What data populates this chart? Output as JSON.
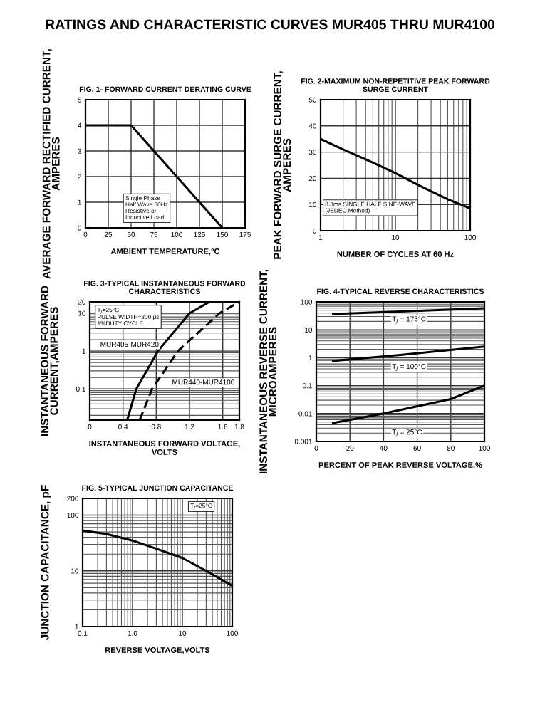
{
  "chart_data": [
    {
      "type": "line",
      "title": "FIG. 1- FORWARD CURRENT DERATING CURVE",
      "xlabel": "AMBIENT TEMPERATURE,°C",
      "ylabel": "AVERAGE FORWARD RECTIFIED CURRENT,\nAMPERES",
      "annotations": [
        "RATINGS AND CHARACTERISTIC CURVES MUR405 THRU MUR4100",
        "Single Phase\nHalf Wave 60Hz\nResistive or\nInductive Load"
      ],
      "series": [
        {
          "color": "#000000",
          "x": [
            0,
            50,
            150
          ],
          "values": [
            4,
            4,
            0
          ],
          "line_style": "solid"
        }
      ],
      "xlim": [
        0,
        175
      ],
      "ylim": [
        0,
        5
      ],
      "xticks": [
        0,
        25,
        50,
        75,
        100,
        125,
        150,
        175
      ],
      "yticks": [
        0,
        1,
        2,
        3,
        4,
        5
      ],
      "grid": true,
      "marker": "none"
    },
    {
      "type": "line",
      "title": "FIG. 2-MAXIMUM NON-REPETITIVE PEAK FORWARD\nSURGE CURRENT",
      "xlabel": "NUMBER OF CYCLES AT 60 Hz",
      "ylabel": "PEAK FORWARD SURGE CURRENT,\nAMPERES",
      "annotations": [
        "8.3ms SINGLE HALF SINE-WAVE\n(JEDEC Method)"
      ],
      "series": [
        {
          "color": "#000000",
          "x": [
            1,
            2,
            5,
            10,
            20,
            50,
            100
          ],
          "values": [
            35,
            31,
            26,
            22,
            17.5,
            12,
            8.5
          ],
          "line_style": "solid"
        }
      ],
      "xlim": [
        1,
        100
      ],
      "ylim": [
        0,
        50
      ],
      "xticks": [
        1,
        10,
        100
      ],
      "yticks": [
        0,
        10,
        20,
        30,
        40,
        50
      ],
      "log": "x",
      "grid": true,
      "marker": "none"
    },
    {
      "type": "line",
      "title": "FIG. 3-TYPICAL INSTANTANEOUS FORWARD\nCHARACTERISTICS",
      "xlabel": "INSTANTANEOUS FORWARD VOLTAGE,\nVOLTS",
      "ylabel": "INSTANTANEOUS FORWARD\nCURRENT,AMPERES",
      "annotations": [
        "T$_{J}$=25°C\nPULSE WIDTH=300 μs\n1%DUTY CYCLE"
      ],
      "series": [
        {
          "name": "MUR405-MUR420",
          "color": "#000000",
          "x": [
            0.45,
            0.56,
            0.82,
            1.2,
            1.44
          ],
          "values": [
            0.015,
            0.1,
            1,
            10,
            20
          ],
          "line_style": "solid"
        },
        {
          "name": "MUR440-MUR4100",
          "color": "#000000",
          "x": [
            0.6,
            0.75,
            1.06,
            1.56,
            1.8
          ],
          "values": [
            0.015,
            0.1,
            1,
            10,
            20
          ],
          "line_style": "dashed"
        }
      ],
      "xlim": [
        0,
        1.8
      ],
      "ylim": [
        0.015,
        20
      ],
      "xticks": [
        0,
        0.4,
        0.8,
        1.2,
        1.6,
        1.8
      ],
      "yticks": [
        0.1,
        1,
        10,
        20
      ],
      "log": "y",
      "grid": true,
      "marker": "none"
    },
    {
      "type": "line",
      "title": "FIG. 4-TYPICAL REVERSE CHARACTERISTICS",
      "xlabel": "PERCENT OF PEAK REVERSE VOLTAGE,%",
      "ylabel": "INSTANTANEOUS REVERSE CURRENT,\nMICROAMPERES",
      "series": [
        {
          "name": "T$_{J}$ = 175°C",
          "color": "#000000",
          "x": [
            10,
            50,
            100
          ],
          "values": [
            37,
            45,
            59
          ],
          "line_style": "solid"
        },
        {
          "name": "T$_{J}$ = 100°C",
          "color": "#000000",
          "x": [
            10,
            50,
            100
          ],
          "values": [
            0.77,
            1.25,
            2.5
          ],
          "line_style": "solid"
        },
        {
          "name": "T$_{J}$ = 25°C",
          "color": "#000000",
          "x": [
            10,
            40,
            80,
            100
          ],
          "values": [
            0.0046,
            0.01,
            0.033,
            0.1
          ],
          "line_style": "solid"
        }
      ],
      "xlim": [
        0,
        100
      ],
      "ylim": [
        0.001,
        100
      ],
      "xticks": [
        0,
        20,
        40,
        60,
        80,
        100
      ],
      "yticks": [
        0.001,
        0.01,
        0.1,
        1,
        10,
        100
      ],
      "log": "y",
      "grid": true,
      "marker": "none"
    },
    {
      "type": "line",
      "title": "FIG. 5-TYPICAL JUNCTION CAPACITANCE",
      "xlabel": "REVERSE VOLTAGE,VOLTS",
      "ylabel": "JUNCTION CAPACITANCE, pF",
      "annotations": [
        "T$_{J}$=25°C"
      ],
      "series": [
        {
          "color": "#000000",
          "x": [
            0.1,
            0.3,
            1,
            3,
            10,
            30,
            100
          ],
          "values": [
            53,
            46,
            35,
            25,
            17,
            10,
            5.4
          ],
          "line_style": "solid"
        }
      ],
      "xlim": [
        0.1,
        100
      ],
      "ylim": [
        1,
        200
      ],
      "xticks": [
        0.1,
        {
          "value": 1,
          "label": "1.0"
        },
        10,
        100
      ],
      "yticks": [
        1,
        10,
        100,
        200
      ],
      "log": "xy",
      "grid": true,
      "marker": "none"
    }
  ]
}
